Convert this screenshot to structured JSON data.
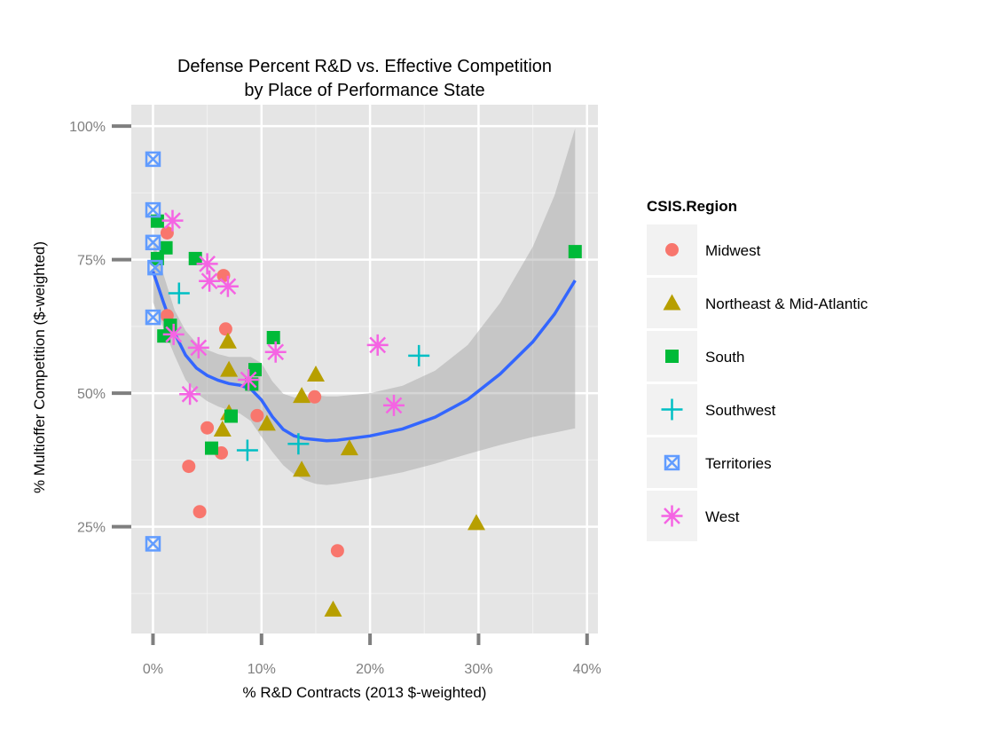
{
  "chart_data": {
    "type": "scatter",
    "title": [
      "Defense Percent R&D vs. Effective Competition",
      "by Place of Performance State"
    ],
    "xlabel": "% R&D Contracts (2013 $-weighted)",
    "ylabel": "% Multioffer Competition ($-weighted)",
    "xlim": [
      -0.02,
      0.41
    ],
    "ylim": [
      0.05,
      1.04
    ],
    "x_ticks": [
      0,
      0.1,
      0.2,
      0.3,
      0.4
    ],
    "x_tick_labels": [
      "0%",
      "10%",
      "20%",
      "30%",
      "40%"
    ],
    "y_ticks": [
      0.25,
      0.5,
      0.75,
      1.0
    ],
    "y_tick_labels": [
      "25%",
      "50%",
      "75%",
      "100%"
    ],
    "grid": true,
    "legend": {
      "title": "CSIS.Region",
      "position": "right"
    },
    "series": [
      {
        "name": "Midwest",
        "color": "#F8766D",
        "shape": "circle",
        "points": [
          [
            0.013,
            0.8
          ],
          [
            0.013,
            0.645
          ],
          [
            0.065,
            0.72
          ],
          [
            0.067,
            0.62
          ],
          [
            0.096,
            0.458
          ],
          [
            0.149,
            0.493
          ],
          [
            0.05,
            0.435
          ],
          [
            0.033,
            0.363
          ],
          [
            0.063,
            0.388
          ],
          [
            0.043,
            0.278
          ],
          [
            0.17,
            0.205
          ]
        ]
      },
      {
        "name": "Northeast & Mid-Atlantic",
        "color": "#B79F00",
        "shape": "triangle",
        "points": [
          [
            0.069,
            0.597
          ],
          [
            0.07,
            0.544
          ],
          [
            0.07,
            0.463
          ],
          [
            0.064,
            0.432
          ],
          [
            0.105,
            0.443
          ],
          [
            0.137,
            0.495
          ],
          [
            0.15,
            0.535
          ],
          [
            0.137,
            0.357
          ],
          [
            0.181,
            0.397
          ],
          [
            0.166,
            0.095
          ],
          [
            0.298,
            0.257
          ]
        ]
      },
      {
        "name": "South",
        "color": "#00BA38",
        "shape": "square",
        "points": [
          [
            0.004,
            0.822
          ],
          [
            0.012,
            0.772
          ],
          [
            0.004,
            0.752
          ],
          [
            0.039,
            0.752
          ],
          [
            0.01,
            0.607
          ],
          [
            0.016,
            0.627
          ],
          [
            0.111,
            0.604
          ],
          [
            0.094,
            0.544
          ],
          [
            0.091,
            0.517
          ],
          [
            0.072,
            0.457
          ],
          [
            0.054,
            0.397
          ],
          [
            0.389,
            0.765
          ]
        ]
      },
      {
        "name": "Southwest",
        "color": "#00BFC4",
        "shape": "plus",
        "points": [
          [
            0.024,
            0.687
          ],
          [
            0.087,
            0.393
          ],
          [
            0.134,
            0.405
          ],
          [
            0.245,
            0.57
          ]
        ]
      },
      {
        "name": "Territories",
        "color": "#619CFF",
        "shape": "square-x",
        "points": [
          [
            0.0,
            0.938
          ],
          [
            0.0,
            0.843
          ],
          [
            0.0,
            0.782
          ],
          [
            0.002,
            0.735
          ],
          [
            0.0,
            0.642
          ],
          [
            0.0,
            0.218
          ]
        ]
      },
      {
        "name": "West",
        "color": "#F564E3",
        "shape": "star",
        "points": [
          [
            0.018,
            0.823
          ],
          [
            0.05,
            0.742
          ],
          [
            0.052,
            0.71
          ],
          [
            0.069,
            0.7
          ],
          [
            0.019,
            0.61
          ],
          [
            0.042,
            0.585
          ],
          [
            0.034,
            0.498
          ],
          [
            0.088,
            0.525
          ],
          [
            0.113,
            0.577
          ],
          [
            0.207,
            0.59
          ],
          [
            0.222,
            0.477
          ]
        ]
      }
    ],
    "smooth_line": {
      "color": "#3366FF",
      "x": [
        0.0,
        0.01,
        0.02,
        0.03,
        0.04,
        0.05,
        0.06,
        0.07,
        0.08,
        0.09,
        0.1,
        0.11,
        0.12,
        0.13,
        0.14,
        0.15,
        0.16,
        0.17,
        0.2,
        0.23,
        0.26,
        0.29,
        0.32,
        0.35,
        0.37,
        0.389
      ],
      "y": [
        0.728,
        0.668,
        0.612,
        0.571,
        0.547,
        0.533,
        0.524,
        0.518,
        0.515,
        0.508,
        0.487,
        0.456,
        0.432,
        0.42,
        0.415,
        0.413,
        0.411,
        0.412,
        0.42,
        0.433,
        0.455,
        0.488,
        0.536,
        0.596,
        0.648,
        0.711
      ]
    },
    "confidence_band": {
      "color": "#999999",
      "x": [
        0.0,
        0.01,
        0.02,
        0.03,
        0.04,
        0.05,
        0.06,
        0.07,
        0.08,
        0.09,
        0.1,
        0.11,
        0.12,
        0.13,
        0.14,
        0.15,
        0.16,
        0.17,
        0.2,
        0.23,
        0.26,
        0.29,
        0.32,
        0.35,
        0.37,
        0.389
      ],
      "lower": [
        0.67,
        0.62,
        0.57,
        0.525,
        0.5,
        0.485,
        0.475,
        0.468,
        0.462,
        0.448,
        0.418,
        0.39,
        0.365,
        0.348,
        0.337,
        0.33,
        0.328,
        0.33,
        0.34,
        0.352,
        0.368,
        0.386,
        0.403,
        0.418,
        0.426,
        0.434
      ],
      "upper": [
        0.79,
        0.72,
        0.655,
        0.617,
        0.594,
        0.581,
        0.573,
        0.568,
        0.568,
        0.568,
        0.556,
        0.522,
        0.499,
        0.492,
        0.493,
        0.496,
        0.494,
        0.494,
        0.5,
        0.514,
        0.542,
        0.59,
        0.669,
        0.774,
        0.87,
        0.996
      ]
    }
  }
}
